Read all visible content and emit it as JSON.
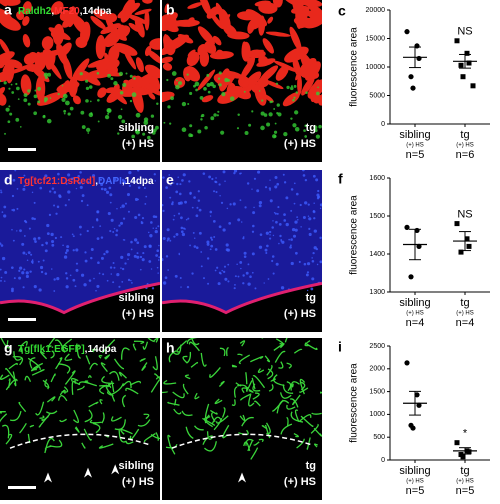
{
  "images": [
    {
      "letter": "a",
      "caption": [
        "Raldh2",
        ",",
        "MF20",
        ",14dpa"
      ],
      "caption_colors": [
        "#33dd33",
        "#ffffff",
        "#ff3333",
        "#ffffff"
      ],
      "tags": [
        "sibling",
        "(+) HS"
      ],
      "style": "muscle"
    },
    {
      "letter": "b",
      "tags": [
        "tg",
        "(+) HS"
      ],
      "style": "muscle"
    },
    {
      "letter": "d",
      "caption": [
        "Tg[tcf21:DsRed]",
        ",",
        "DAPI",
        ",14dpa"
      ],
      "caption_colors": [
        "#ff3333",
        "#ffffff",
        "#4466ff",
        "#ffffff"
      ],
      "tags": [
        "sibling",
        "(+) HS"
      ],
      "style": "nuclei"
    },
    {
      "letter": "e",
      "tags": [
        "tg",
        "(+) HS"
      ],
      "style": "nuclei"
    },
    {
      "letter": "g",
      "caption": [
        "Tg[flk1:EGFP]",
        ",14dpa"
      ],
      "caption_colors": [
        "#33dd33",
        "#ffffff"
      ],
      "tags": [
        "sibling",
        "(+) HS"
      ],
      "style": "vessels"
    },
    {
      "letter": "h",
      "tags": [
        "tg",
        "(+) HS"
      ],
      "style": "vessels"
    }
  ],
  "chart_data": [
    {
      "type": "dot",
      "letter": "c",
      "ylabel": "fluorescence area",
      "categories": [
        "sibling",
        "tg"
      ],
      "sublabels": [
        "(+) HS",
        "(+) HS"
      ],
      "n_labels": [
        "n=5",
        "n=6"
      ],
      "markers": [
        "circle",
        "square"
      ],
      "values": [
        [
          16200,
          13700,
          11500,
          8300,
          6300
        ],
        [
          14600,
          12400,
          10700,
          10300,
          8300,
          6700
        ]
      ],
      "means": [
        11700,
        11000
      ],
      "errors": [
        1800,
        1200
      ],
      "annotations": [
        null,
        "NS"
      ],
      "ylim": [
        0,
        20000
      ],
      "yticks": [
        0,
        5000,
        10000,
        15000,
        20000
      ]
    },
    {
      "type": "dot",
      "letter": "f",
      "ylabel": "fluorescence area",
      "categories": [
        "sibling",
        "tg"
      ],
      "sublabels": [
        "(+) HS",
        "(+) HS"
      ],
      "n_labels": [
        "n=4",
        "n=4"
      ],
      "markers": [
        "circle",
        "square"
      ],
      "values": [
        [
          1470,
          1462,
          1420,
          1340
        ],
        [
          1480,
          1440,
          1420,
          1405
        ]
      ],
      "means": [
        1425,
        1434
      ],
      "errors": [
        40,
        25
      ],
      "annotations": [
        null,
        "NS"
      ],
      "ylim": [
        1300,
        1600
      ],
      "yticks": [
        1300,
        1400,
        1500,
        1600
      ]
    },
    {
      "type": "dot",
      "letter": "i",
      "ylabel": "fluorescence area",
      "categories": [
        "sibling",
        "tg"
      ],
      "sublabels": [
        "(+) HS",
        "(+) HS"
      ],
      "n_labels": [
        "n=5",
        "n=5"
      ],
      "markers": [
        "circle",
        "square"
      ],
      "values": [
        [
          2130,
          1430,
          1200,
          760,
          700
        ],
        [
          380,
          200,
          180,
          120,
          70
        ]
      ],
      "means": [
        1245,
        200
      ],
      "errors": [
        260,
        70
      ],
      "annotations": [
        null,
        "*"
      ],
      "ylim": [
        0,
        2500
      ],
      "yticks": [
        0,
        500,
        1000,
        1500,
        2000,
        2500
      ]
    }
  ]
}
